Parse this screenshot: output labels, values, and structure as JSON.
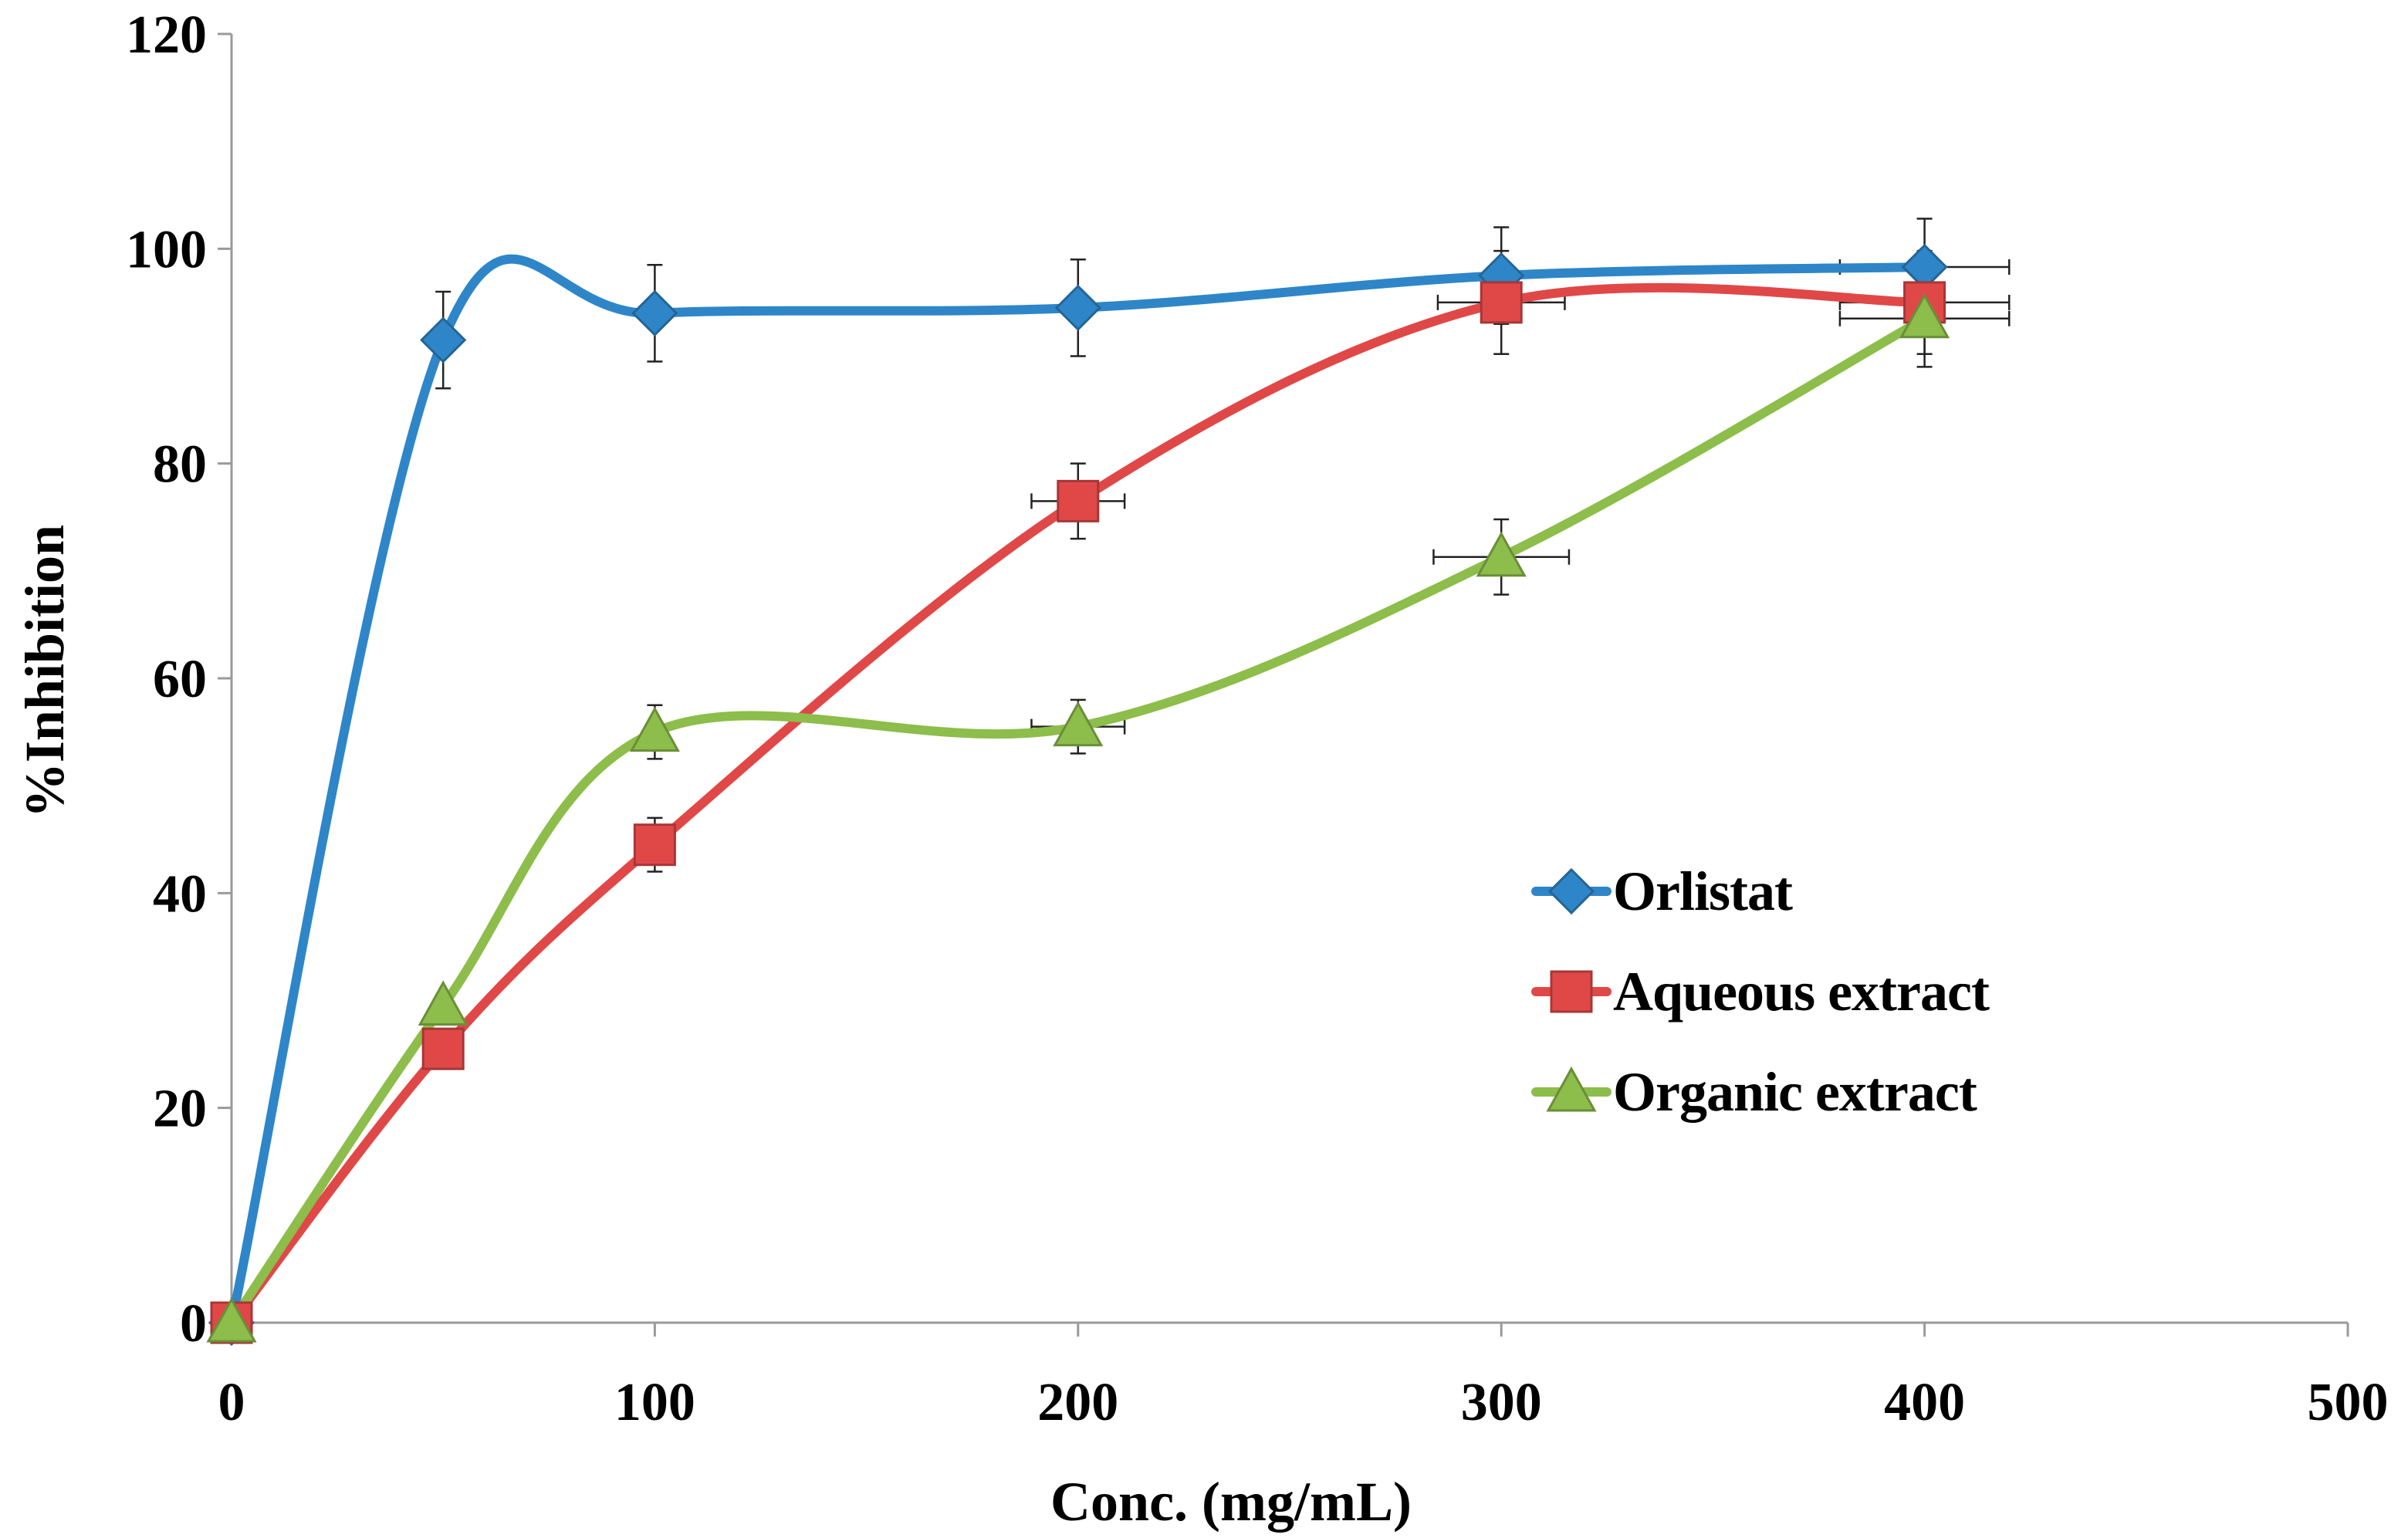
{
  "chart_data": {
    "type": "line",
    "title": "",
    "xlabel": "Conc. (mg/mL)",
    "ylabel": "%Inhibition",
    "xlim": [
      0,
      500
    ],
    "ylim": [
      0,
      120
    ],
    "xticks": [
      0,
      100,
      200,
      300,
      400,
      500
    ],
    "yticks": [
      0,
      20,
      40,
      60,
      80,
      100,
      120
    ],
    "grid": false,
    "legend_position": "right-middle",
    "series": [
      {
        "name": "Orlistat",
        "color": "#2E86C8",
        "marker": "diamond",
        "x": [
          0,
          50,
          100,
          200,
          300,
          400
        ],
        "y": [
          0,
          91.5,
          94,
          94.5,
          97.5,
          98.3
        ],
        "yerr": [
          0,
          4.5,
          4.5,
          4.5,
          4.5,
          4.5
        ],
        "xerr": [
          0,
          0,
          0,
          0,
          0,
          20
        ]
      },
      {
        "name": "Aqueous extract",
        "color": "#E04848",
        "marker": "square",
        "x": [
          0,
          50,
          100,
          200,
          300,
          400
        ],
        "y": [
          0,
          25.5,
          44.5,
          76.5,
          95,
          95
        ],
        "yerr": [
          0,
          0,
          2.5,
          3.5,
          4.8,
          4.8
        ],
        "xerr": [
          0,
          0,
          0,
          11,
          15,
          20
        ]
      },
      {
        "name": "Organic extract",
        "color": "#8DBD4A",
        "marker": "triangle",
        "x": [
          0,
          50,
          100,
          200,
          300,
          400
        ],
        "y": [
          0,
          29.5,
          55,
          55.5,
          71.3,
          93.5
        ],
        "yerr": [
          0,
          0,
          2.5,
          2.5,
          3.5,
          4.5
        ],
        "xerr": [
          0,
          0,
          0,
          11,
          16,
          20
        ]
      }
    ]
  }
}
